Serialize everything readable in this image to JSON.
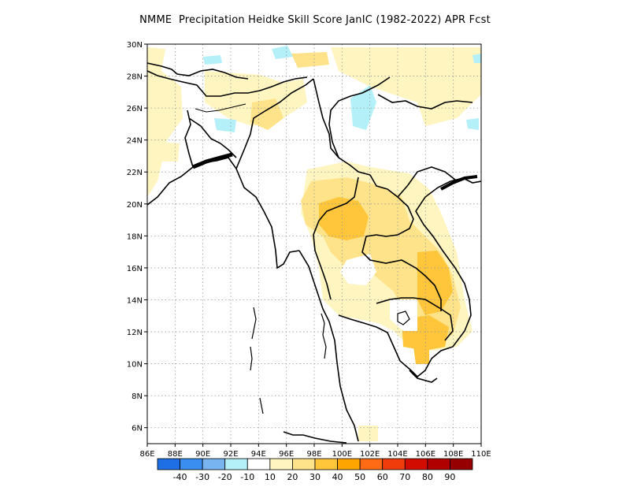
{
  "title": "NMME  Precipitation Heidke Skill Score JanIC (1982-2022) APR Fcst",
  "map": {
    "lon_range": [
      86,
      110
    ],
    "lat_range": [
      5,
      30
    ],
    "grid": "dotted",
    "x_ticks": [
      "86E",
      "88E",
      "90E",
      "92E",
      "94E",
      "96E",
      "98E",
      "100E",
      "102E",
      "104E",
      "106E",
      "108E",
      "110E"
    ],
    "y_ticks": [
      "6N",
      "8N",
      "10N",
      "12N",
      "14N",
      "16N",
      "18N",
      "20N",
      "22N",
      "24N",
      "26N",
      "28N",
      "30N"
    ]
  },
  "colorbar": {
    "labels": [
      "-40",
      "-30",
      "-20",
      "-10",
      "10",
      "20",
      "30",
      "40",
      "50",
      "60",
      "70",
      "80",
      "90"
    ],
    "colors": [
      "#1e6fe6",
      "#3a8ef0",
      "#78b4f0",
      "#b4f0f8",
      "#ffffff",
      "#fff5c0",
      "#ffe38a",
      "#ffc63c",
      "#ffa500",
      "#ff6a14",
      "#f03c0a",
      "#d20c00",
      "#b00000",
      "#960000"
    ]
  }
}
